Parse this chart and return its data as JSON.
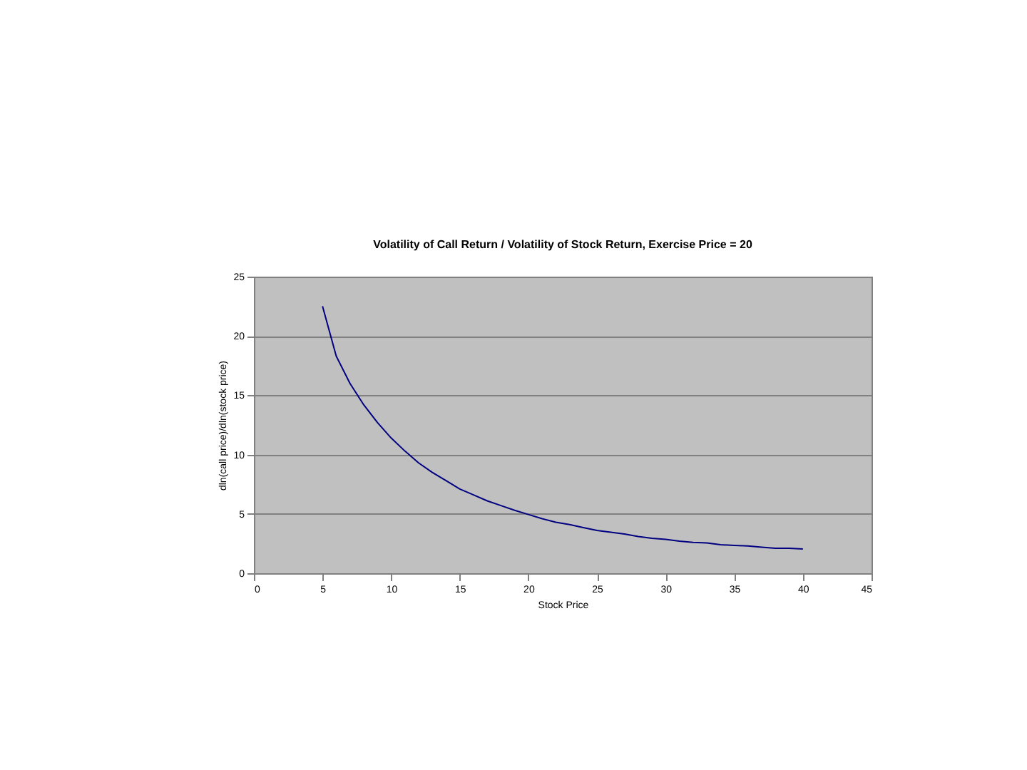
{
  "chart_data": {
    "type": "line",
    "title": "Volatility of Call Return / Volatility of Stock Return, Exercise Price = 20",
    "xlabel": "Stock Price",
    "ylabel": "dln(call price)/dln(stock price)",
    "x": [
      5,
      6,
      7,
      8,
      9,
      10,
      11,
      12,
      13,
      14,
      15,
      16,
      17,
      18,
      19,
      20,
      21,
      22,
      23,
      24,
      25,
      26,
      27,
      28,
      29,
      30,
      31,
      32,
      33,
      34,
      35,
      36,
      37,
      38,
      39,
      40
    ],
    "series": [
      {
        "color": "#000080",
        "values": [
          22.5,
          18.3,
          16,
          14.2,
          12.7,
          11.4,
          10.3,
          9.3,
          8.5,
          7.8,
          7.1,
          6.6,
          6.1,
          5.7,
          5.3,
          4.95,
          4.6,
          4.3,
          4.1,
          3.85,
          3.6,
          3.45,
          3.3,
          3.1,
          2.95,
          2.85,
          2.7,
          2.6,
          2.55,
          2.4,
          2.35,
          2.3,
          2.2,
          2.1,
          2.1,
          2.05
        ]
      }
    ],
    "xlim": [
      0,
      45
    ],
    "xticks": [
      0,
      5,
      10,
      15,
      20,
      25,
      30,
      35,
      40,
      45
    ],
    "ylim": [
      0,
      25
    ],
    "yticks": [
      0,
      5,
      10,
      15,
      20,
      25
    ],
    "grid": "y",
    "legend": false,
    "marker": "none",
    "line_style": "solid"
  }
}
